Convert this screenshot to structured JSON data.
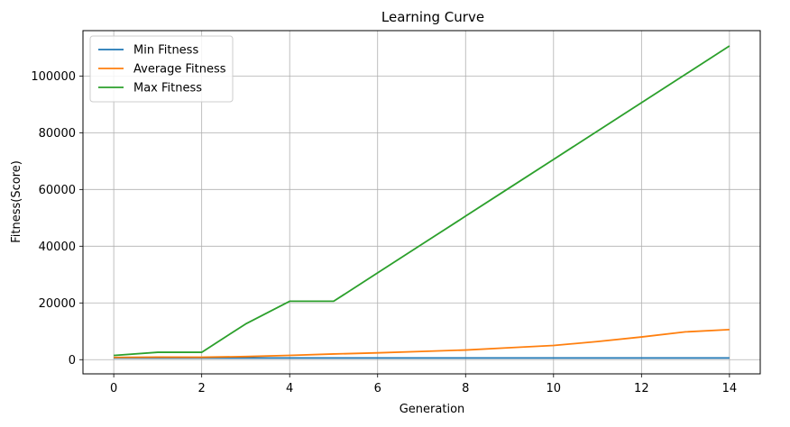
{
  "chart_data": {
    "type": "line",
    "title": "Learning Curve",
    "xlabel": "Generation",
    "ylabel": "Fitness(Score)",
    "xlim": [
      -0.7,
      14.7
    ],
    "ylim": [
      -5000,
      116000
    ],
    "xticks": [
      0,
      2,
      4,
      6,
      8,
      10,
      12,
      14
    ],
    "yticks": [
      0,
      20000,
      40000,
      60000,
      80000,
      100000
    ],
    "grid": true,
    "legend_position": "upper left",
    "x": [
      0,
      1,
      2,
      3,
      4,
      5,
      6,
      7,
      8,
      9,
      10,
      11,
      12,
      13,
      14
    ],
    "series": [
      {
        "name": "Min Fitness",
        "color": "#1f77b4",
        "values": [
          600,
          600,
          600,
          600,
          600,
          600,
          600,
          600,
          600,
          600,
          600,
          600,
          600,
          600,
          600
        ]
      },
      {
        "name": "Average Fitness",
        "color": "#ff7f0e",
        "values": [
          800,
          900,
          850,
          1100,
          1500,
          2000,
          2400,
          2900,
          3400,
          4200,
          5000,
          6400,
          8000,
          9800,
          10600
        ]
      },
      {
        "name": "Max Fitness",
        "color": "#2ca02c",
        "values": [
          1500,
          2600,
          2600,
          12600,
          20600,
          20600,
          30600,
          40600,
          50600,
          60600,
          70600,
          80600,
          90600,
          100600,
          110600
        ]
      }
    ]
  }
}
